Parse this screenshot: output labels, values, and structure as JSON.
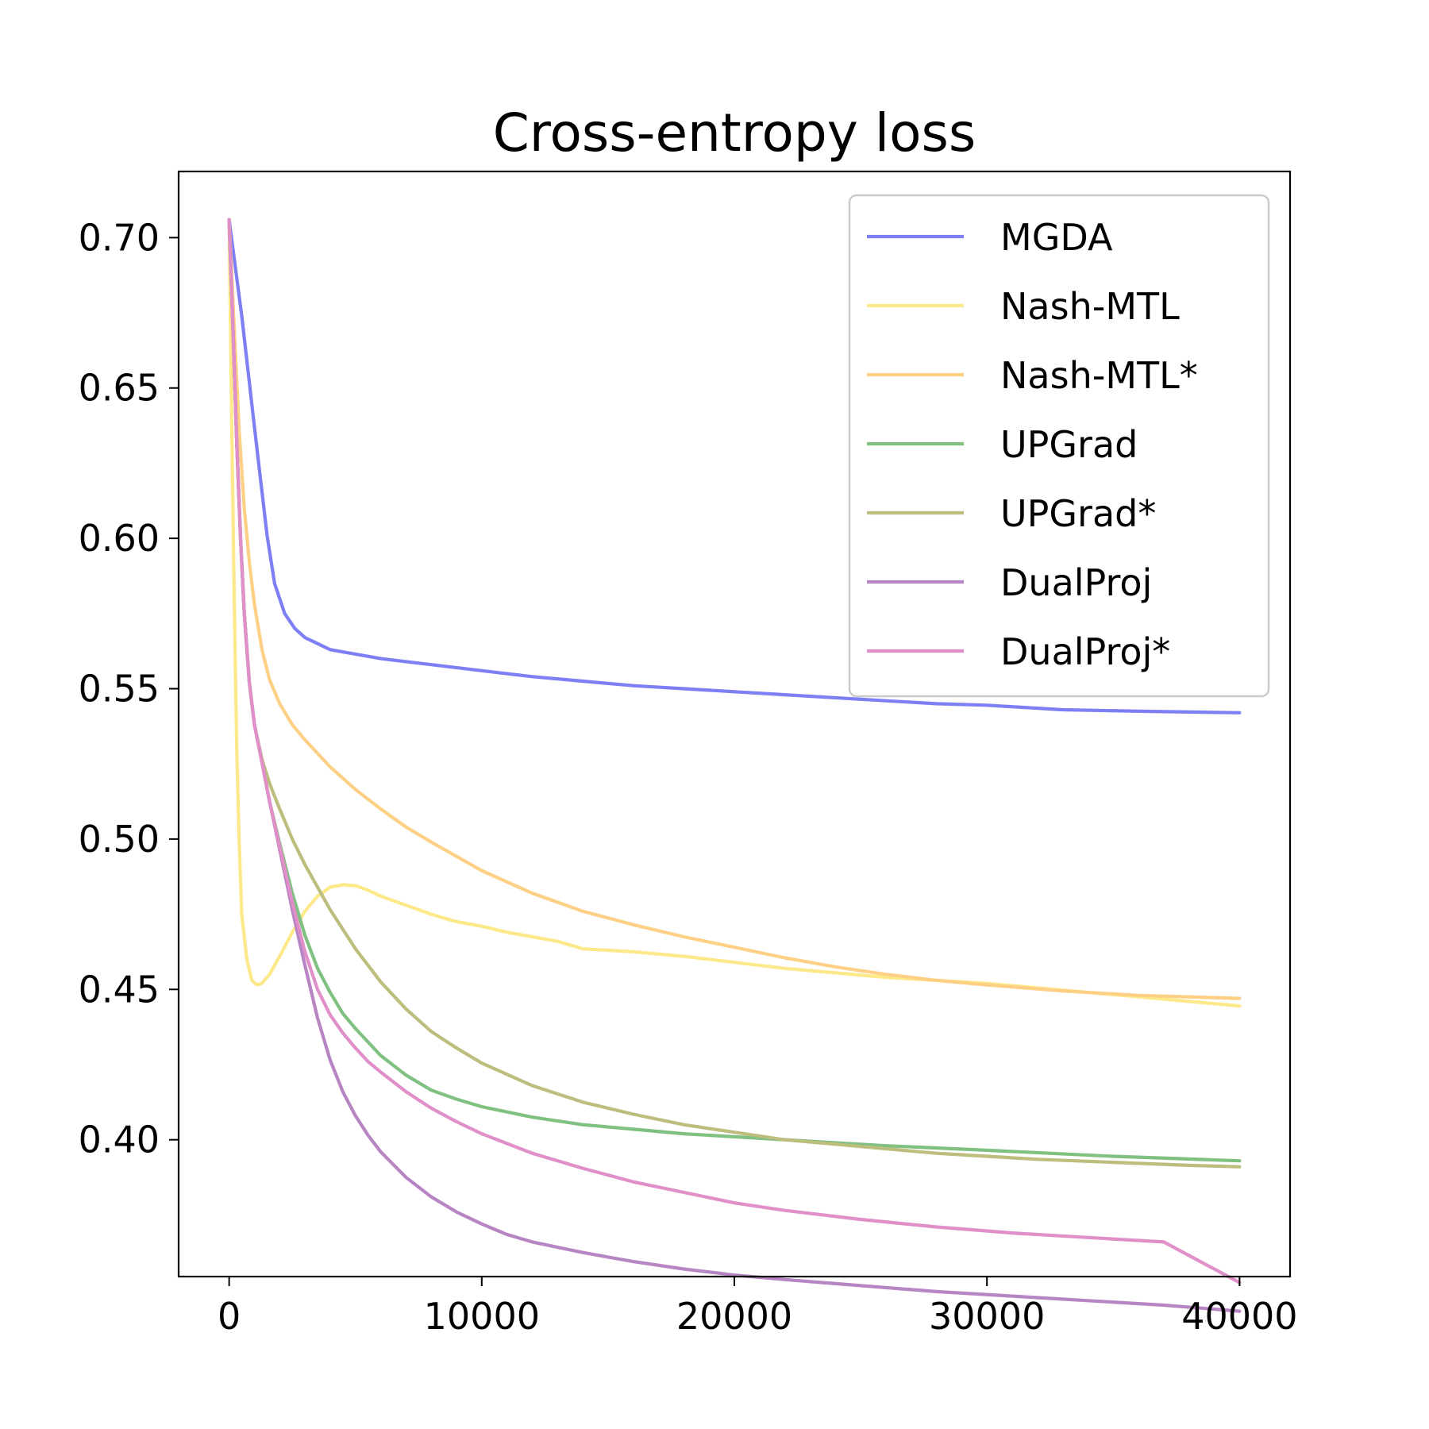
{
  "chart_data": {
    "type": "line",
    "title": "Cross-entropy loss",
    "xlabel": "",
    "ylabel": "",
    "xlim": [
      -2000,
      42000
    ],
    "ylim": [
      0.3545,
      0.722
    ],
    "xticks": [
      0,
      10000,
      20000,
      30000,
      40000
    ],
    "xtick_labels": [
      "0",
      "10000",
      "20000",
      "30000",
      "40000"
    ],
    "yticks": [
      0.4,
      0.45,
      0.5,
      0.55,
      0.6,
      0.65,
      0.7
    ],
    "ytick_labels": [
      "0.40",
      "0.45",
      "0.50",
      "0.55",
      "0.60",
      "0.65",
      "0.70"
    ],
    "grid": false,
    "legend_position": "top-right",
    "series": [
      {
        "name": "MGDA",
        "color": "#7f7ff5",
        "x": [
          0,
          500,
          1000,
          1500,
          1800,
          2200,
          2600,
          3000,
          3500,
          4000,
          5000,
          6000,
          7000,
          8000,
          10000,
          12000,
          14000,
          16000,
          18000,
          20000,
          22000,
          25000,
          28000,
          30000,
          33000,
          36000,
          40000
        ],
        "y": [
          0.706,
          0.674,
          0.637,
          0.601,
          0.585,
          0.575,
          0.57,
          0.567,
          0.565,
          0.563,
          0.5615,
          0.56,
          0.559,
          0.558,
          0.556,
          0.554,
          0.5525,
          0.551,
          0.55,
          0.549,
          0.548,
          0.5465,
          0.545,
          0.5445,
          0.543,
          0.5425,
          0.542
        ]
      },
      {
        "name": "Nash-MTL",
        "color": "#fde98a",
        "x": [
          0,
          100,
          200,
          300,
          400,
          500,
          700,
          900,
          1100,
          1300,
          1600,
          2000,
          2500,
          3000,
          3500,
          4000,
          4500,
          5000,
          5500,
          6000,
          7000,
          8000,
          9000,
          10000,
          11000,
          12000,
          13000,
          14000,
          16000,
          18000,
          20000,
          22000,
          24000,
          26000,
          28000,
          30000,
          32000,
          34000,
          36000,
          38000,
          40000
        ],
        "y": [
          0.706,
          0.64,
          0.58,
          0.53,
          0.498,
          0.475,
          0.46,
          0.453,
          0.4515,
          0.452,
          0.455,
          0.461,
          0.469,
          0.476,
          0.481,
          0.484,
          0.4848,
          0.4845,
          0.483,
          0.481,
          0.478,
          0.475,
          0.4725,
          0.471,
          0.469,
          0.4675,
          0.466,
          0.4635,
          0.4625,
          0.461,
          0.459,
          0.457,
          0.4555,
          0.454,
          0.453,
          0.452,
          0.4505,
          0.449,
          0.4475,
          0.446,
          0.4445
        ]
      },
      {
        "name": "Nash-MTL*",
        "color": "#fdd085",
        "x": [
          0,
          200,
          400,
          600,
          800,
          1000,
          1300,
          1600,
          2000,
          2500,
          3000,
          4000,
          5000,
          6000,
          7000,
          8000,
          10000,
          12000,
          14000,
          16000,
          18000,
          20000,
          22000,
          24000,
          26000,
          28000,
          30000,
          33000,
          36000,
          40000
        ],
        "y": [
          0.706,
          0.67,
          0.635,
          0.61,
          0.592,
          0.578,
          0.563,
          0.553,
          0.545,
          0.538,
          0.533,
          0.524,
          0.5165,
          0.51,
          0.504,
          0.499,
          0.4895,
          0.482,
          0.476,
          0.4715,
          0.4675,
          0.464,
          0.4605,
          0.4575,
          0.455,
          0.453,
          0.4515,
          0.4495,
          0.448,
          0.447
        ]
      },
      {
        "name": "UPGrad",
        "color": "#80c080",
        "x": [
          0,
          150,
          300,
          450,
          600,
          800,
          1000,
          1300,
          1600,
          2000,
          2500,
          3000,
          3500,
          4000,
          4500,
          5000,
          6000,
          7000,
          8000,
          9000,
          10000,
          12000,
          14000,
          16000,
          18000,
          20000,
          23000,
          26000,
          30000,
          35000,
          40000
        ],
        "y": [
          0.706,
          0.67,
          0.632,
          0.6,
          0.575,
          0.552,
          0.538,
          0.5255,
          0.5125,
          0.4985,
          0.482,
          0.468,
          0.457,
          0.449,
          0.442,
          0.437,
          0.428,
          0.4215,
          0.4165,
          0.4135,
          0.411,
          0.4075,
          0.405,
          0.4035,
          0.402,
          0.401,
          0.3995,
          0.398,
          0.3965,
          0.3945,
          0.393
        ]
      },
      {
        "name": "UPGrad*",
        "color": "#bdbd7d",
        "x": [
          0,
          150,
          300,
          450,
          600,
          800,
          1000,
          1300,
          1600,
          2000,
          2500,
          3000,
          4000,
          5000,
          6000,
          7000,
          8000,
          9000,
          10000,
          12000,
          14000,
          16000,
          18000,
          20000,
          22000,
          24000,
          26000,
          28000,
          30000,
          32000,
          35000,
          38000,
          40000
        ],
        "y": [
          0.706,
          0.67,
          0.632,
          0.6,
          0.575,
          0.552,
          0.538,
          0.5265,
          0.5185,
          0.51,
          0.5,
          0.4915,
          0.4765,
          0.4635,
          0.4525,
          0.4435,
          0.436,
          0.4305,
          0.4255,
          0.418,
          0.4125,
          0.4085,
          0.405,
          0.4025,
          0.4,
          0.3985,
          0.397,
          0.3955,
          0.3945,
          0.3935,
          0.3925,
          0.3915,
          0.391
        ]
      },
      {
        "name": "DualProj",
        "color": "#b784c4",
        "x": [
          0,
          150,
          300,
          450,
          600,
          800,
          1000,
          1300,
          1600,
          2000,
          2500,
          3000,
          3500,
          4000,
          4500,
          5000,
          5500,
          6000,
          7000,
          8000,
          9000,
          10000,
          11000,
          12000,
          14000,
          16000,
          18000,
          20000,
          22000,
          25000,
          28000,
          31000,
          34000,
          37000,
          40000
        ],
        "y": [
          0.706,
          0.67,
          0.632,
          0.6,
          0.575,
          0.552,
          0.538,
          0.5255,
          0.5125,
          0.4965,
          0.4765,
          0.458,
          0.4405,
          0.4265,
          0.416,
          0.408,
          0.4015,
          0.396,
          0.3875,
          0.381,
          0.376,
          0.372,
          0.3685,
          0.366,
          0.3625,
          0.3595,
          0.357,
          0.355,
          0.3535,
          0.3515,
          0.3495,
          0.348,
          0.3465,
          0.345,
          0.343
        ]
      },
      {
        "name": "DualProj*",
        "color": "#e08fc9",
        "x": [
          0,
          150,
          300,
          450,
          600,
          800,
          1000,
          1300,
          1600,
          2000,
          2500,
          3000,
          3500,
          4000,
          4500,
          5000,
          5500,
          6000,
          7000,
          8000,
          9000,
          10000,
          12000,
          14000,
          16000,
          18000,
          20000,
          22000,
          25000,
          28000,
          31000,
          34000,
          37000,
          40000
        ],
        "y": [
          0.706,
          0.67,
          0.632,
          0.6,
          0.575,
          0.552,
          0.538,
          0.5255,
          0.5125,
          0.4975,
          0.479,
          0.4625,
          0.45,
          0.4415,
          0.4355,
          0.4305,
          0.426,
          0.4225,
          0.416,
          0.4105,
          0.406,
          0.402,
          0.3955,
          0.3905,
          0.386,
          0.3825,
          0.379,
          0.3765,
          0.3735,
          0.371,
          0.369,
          0.3675,
          0.366,
          0.3525
        ]
      }
    ]
  }
}
